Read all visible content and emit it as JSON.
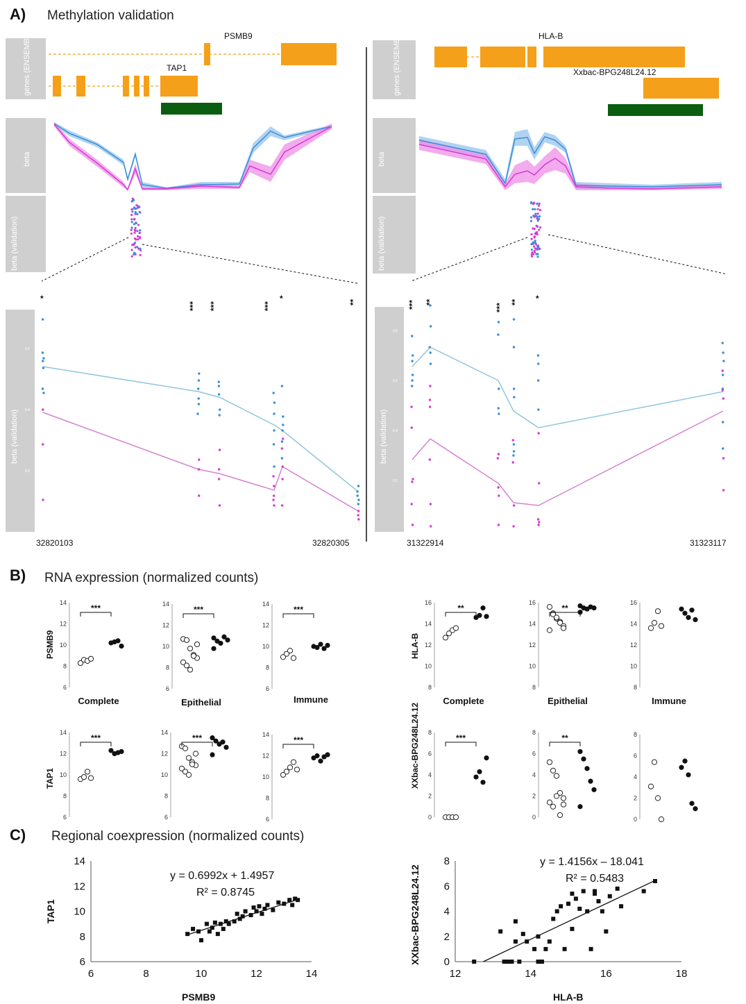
{
  "panels": {
    "a": {
      "letter": "A)",
      "title": "Methylation validation"
    },
    "b": {
      "letter": "B)",
      "title": "RNA expression (normalized counts)"
    },
    "c": {
      "letter": "C)",
      "title": "Regional coexpression (normalized counts)"
    }
  },
  "track_labels": {
    "genes": "genes (ENSEMBL)",
    "beta": "beta",
    "beta_validation": "beta (validation)"
  },
  "colors": {
    "orange": "#f5a01a",
    "green": "#0b5e10",
    "blue": "#3a8fd6",
    "magenta": "#d63ad6",
    "track_gray": "#cfcfcf"
  },
  "methylation_left": {
    "genes": [
      "PSMB9",
      "TAP1"
    ],
    "coord_start": "32820103",
    "coord_end": "32820305",
    "stars": [
      "*",
      "***",
      "***",
      "***",
      "*",
      "**"
    ],
    "zoom_ticks": [
      "0.6",
      "0.4",
      "0.2"
    ]
  },
  "methylation_right": {
    "genes": [
      "HLA-B",
      "Xxbac-BPG248L24.12"
    ],
    "coord_start": "31322914",
    "coord_end": "31323117",
    "stars": [
      "***",
      "**",
      "***",
      "**",
      "*"
    ],
    "zoom_ticks": [
      "0.8",
      "0.6",
      "0.4",
      "0.2"
    ]
  },
  "rna": {
    "groups": [
      "Complete",
      "Epithelial",
      "Immune"
    ],
    "left_genes": [
      "PSMB9",
      "TAP1"
    ],
    "right_genes": [
      "HLA-B",
      "XXbac-BPG248L24.12"
    ],
    "left_ticks": [
      "14",
      "12",
      "10",
      "8",
      "6"
    ],
    "right_top_ticks": [
      "16",
      "14",
      "12",
      "10",
      "8"
    ],
    "right_bottom_ticks": [
      "8",
      "6",
      "4",
      "2",
      "0"
    ],
    "sig": {
      "psmb9": [
        "***",
        "***",
        "***"
      ],
      "tap1": [
        "***",
        "***",
        "***"
      ],
      "hlab": [
        "**",
        "**",
        ""
      ],
      "xxbac": [
        "***",
        "**",
        ""
      ]
    },
    "series_note": "open circles vs filled circles per group"
  },
  "coexpression": {
    "left": {
      "xlabel": "PSMB9",
      "ylabel": "TAP1",
      "equation": "y = 0.6992x + 1.4957",
      "r2": "R² = 0.8745",
      "x_ticks": [
        "6",
        "8",
        "10",
        "12",
        "14"
      ],
      "y_ticks": [
        "14",
        "12",
        "10",
        "8",
        "6"
      ]
    },
    "right": {
      "xlabel": "HLA-B",
      "ylabel": "XXbac-BPG248L24.12",
      "equation": "y = 1.4156x – 18.041",
      "r2": "R² = 0.5483",
      "x_ticks": [
        "12",
        "14",
        "16",
        "18"
      ],
      "y_ticks": [
        "8",
        "6",
        "4",
        "2",
        "0"
      ]
    }
  },
  "chart_data": [
    {
      "type": "scatter",
      "title": "",
      "xlabel": "PSMB9",
      "ylabel": "TAP1",
      "xlim": [
        6,
        14
      ],
      "ylim": [
        6,
        14
      ],
      "trendline": {
        "slope": 0.6992,
        "intercept": 1.4957,
        "r2": 0.8745
      },
      "x": [
        9.5,
        9.7,
        9.9,
        10.0,
        10.2,
        10.3,
        10.4,
        10.5,
        10.6,
        10.7,
        10.8,
        10.9,
        11.0,
        11.2,
        11.3,
        11.4,
        11.5,
        11.6,
        11.8,
        11.9,
        12.0,
        12.1,
        12.2,
        12.3,
        12.4,
        12.6,
        12.8,
        13.0,
        13.2,
        13.3,
        13.4,
        13.5
      ],
      "y": [
        8.2,
        8.6,
        8.4,
        7.7,
        9.0,
        8.4,
        8.7,
        9.1,
        8.2,
        9.0,
        8.6,
        9.2,
        9.0,
        9.2,
        9.8,
        9.4,
        9.6,
        10.0,
        9.7,
        10.3,
        10.0,
        10.4,
        9.8,
        10.2,
        10.5,
        10.1,
        10.7,
        10.6,
        10.9,
        10.5,
        11.0,
        10.9
      ]
    },
    {
      "type": "scatter",
      "title": "",
      "xlabel": "HLA-B",
      "ylabel": "XXbac-BPG248L24.12",
      "xlim": [
        12,
        18
      ],
      "ylim": [
        0,
        8
      ],
      "trendline": {
        "slope": 1.4156,
        "intercept": -18.041,
        "r2": 0.5483
      },
      "x": [
        12.5,
        13.2,
        13.3,
        13.4,
        13.6,
        13.6,
        13.7,
        13.8,
        13.9,
        14.1,
        14.2,
        14.3,
        14.4,
        14.5,
        14.6,
        14.7,
        14.8,
        14.9,
        15.0,
        15.1,
        15.2,
        15.3,
        15.4,
        15.5,
        15.6,
        15.7,
        15.8,
        15.9,
        16.0,
        16.1,
        16.3,
        16.4,
        17.0,
        17.3,
        13.5,
        14.2,
        15.1,
        15.7
      ],
      "y": [
        0,
        2.4,
        0,
        0,
        3.2,
        1.6,
        0,
        2.2,
        1.6,
        1.0,
        2.0,
        0,
        1.0,
        1.6,
        3.4,
        4.0,
        4.4,
        1.0,
        4.6,
        5.4,
        5.0,
        4.2,
        5.6,
        4.0,
        1.0,
        5.6,
        4.8,
        4.0,
        2.4,
        5.2,
        5.8,
        4.4,
        5.6,
        6.4,
        0,
        0,
        2.6,
        5.4
      ]
    }
  ]
}
